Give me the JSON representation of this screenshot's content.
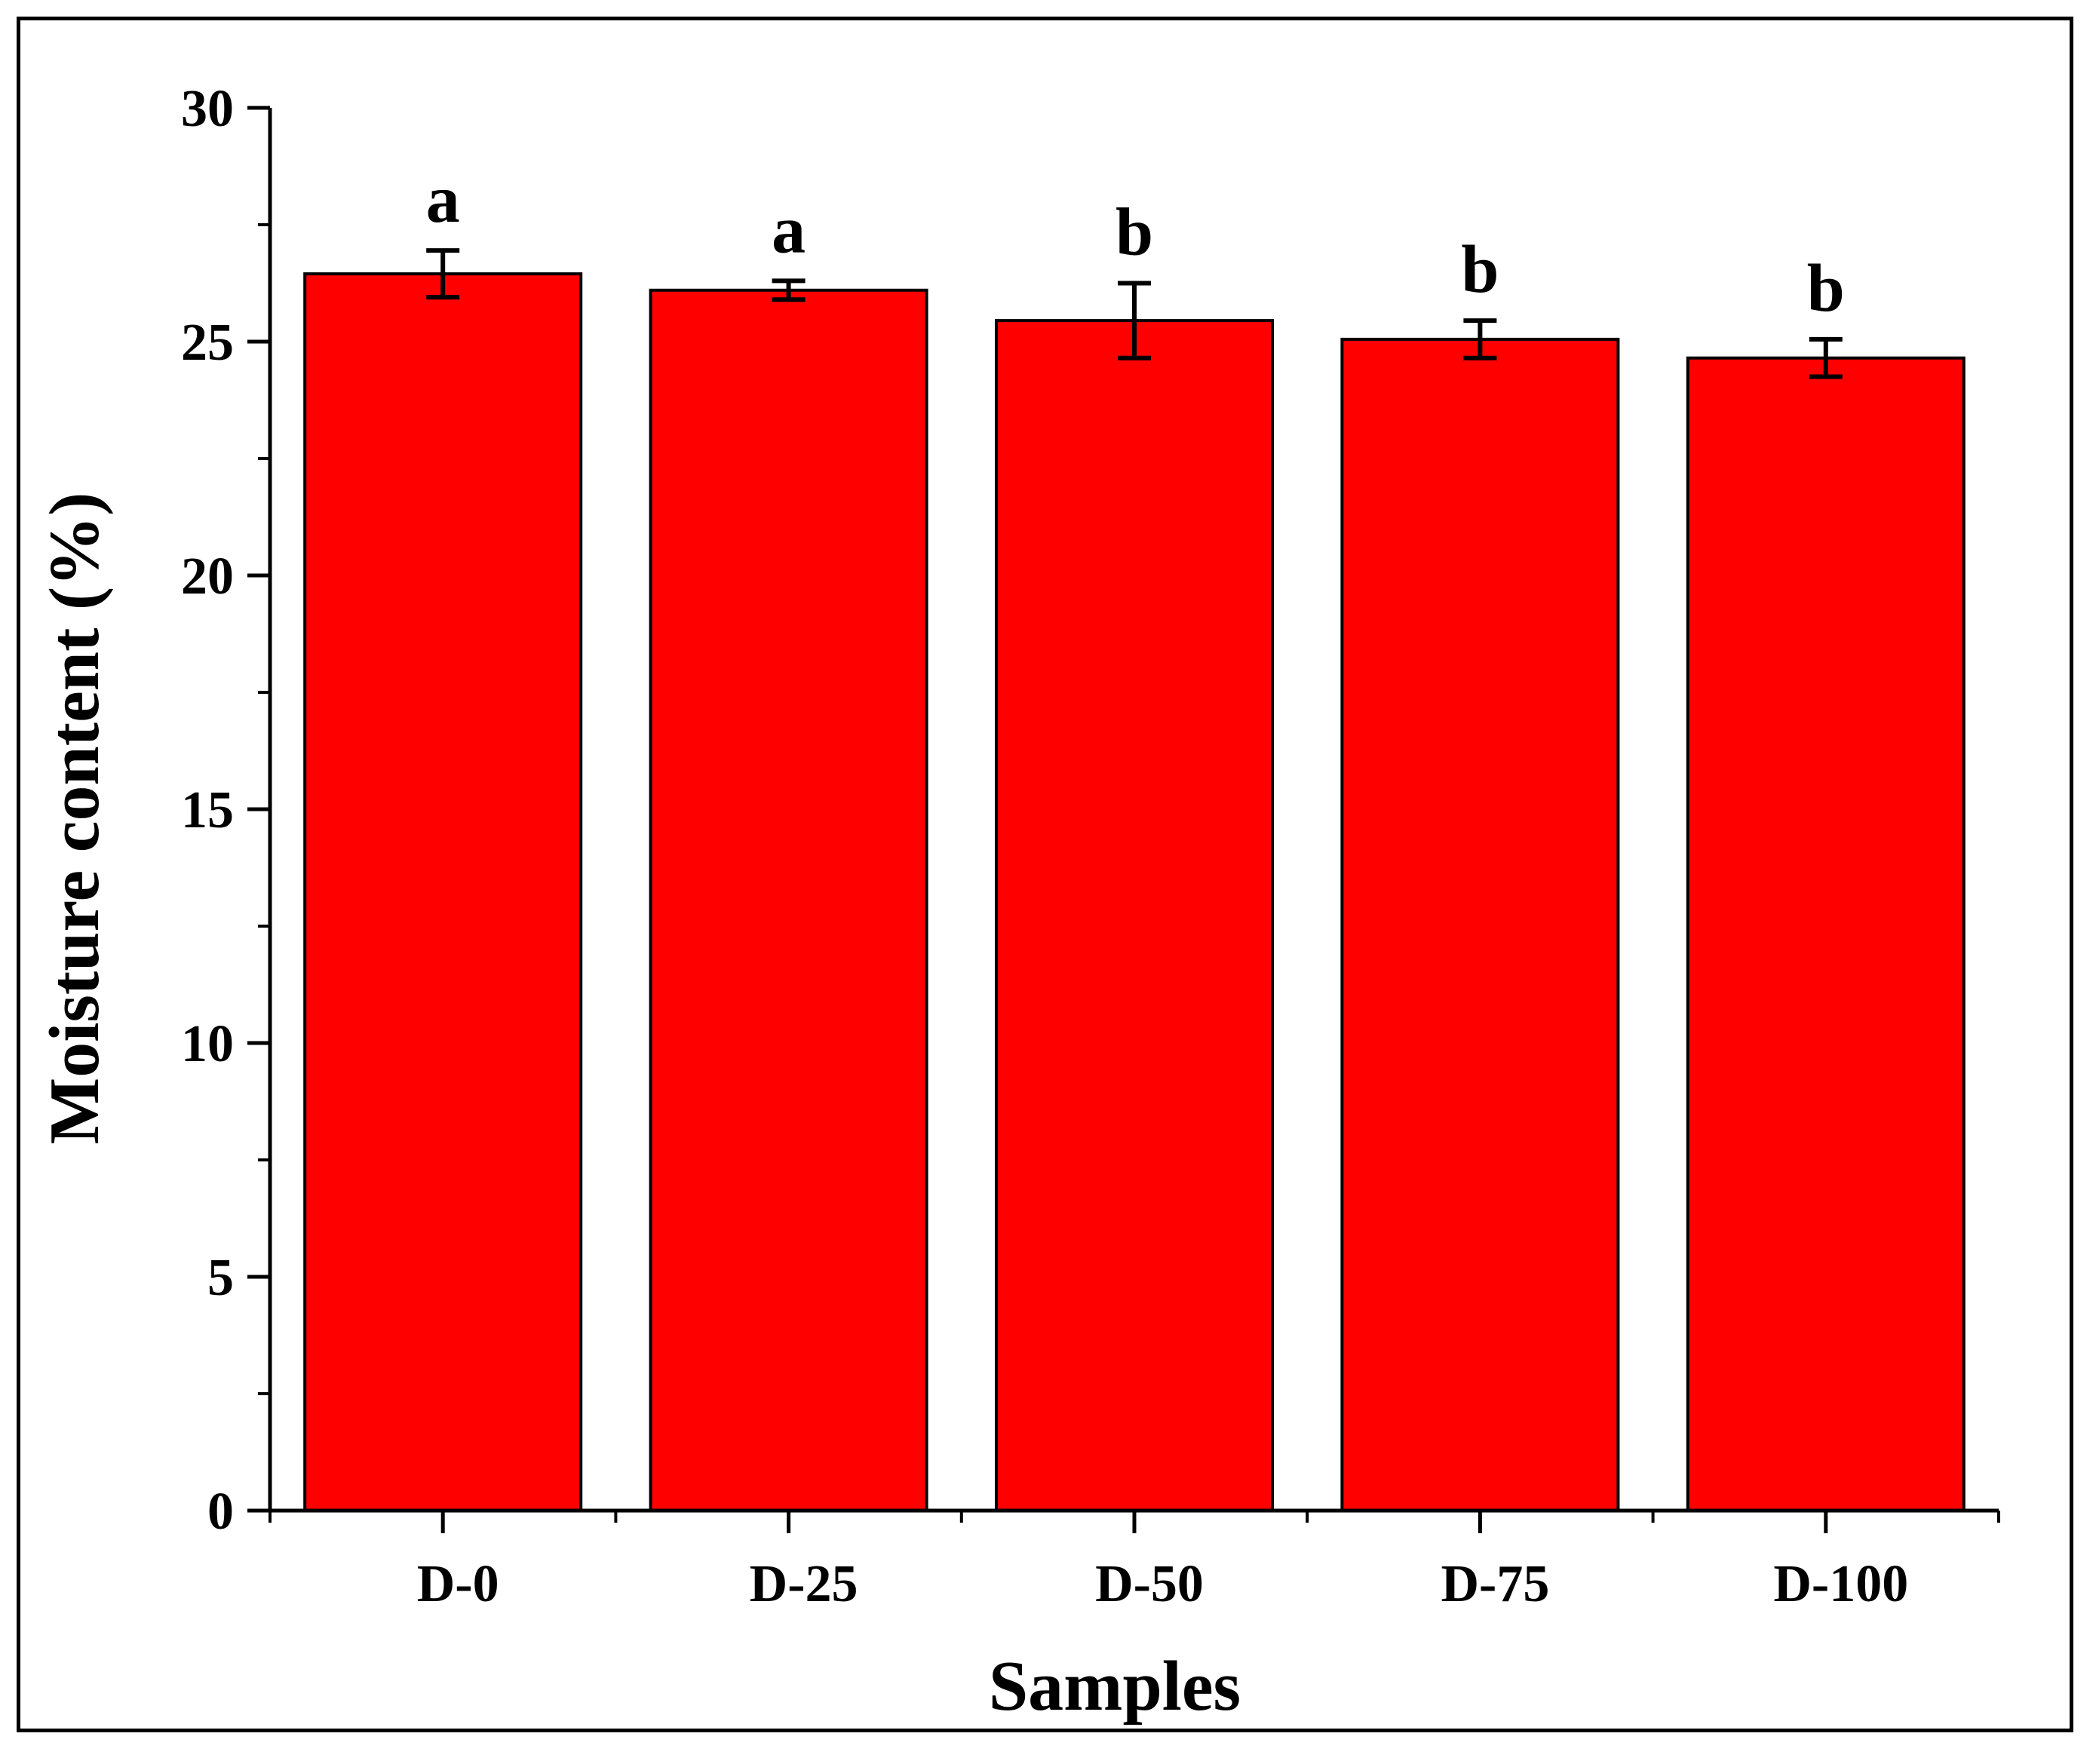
{
  "chart_data": {
    "type": "bar",
    "title": "",
    "xlabel": "Samples",
    "ylabel": "Moisture content (%)",
    "categories": [
      "D-0",
      "D-25",
      "D-50",
      "D-75",
      "D-100"
    ],
    "values": [
      26.45,
      26.1,
      25.45,
      25.05,
      24.65
    ],
    "errors": [
      0.5,
      0.2,
      0.8,
      0.4,
      0.4
    ],
    "significance": [
      "a",
      "a",
      "b",
      "b",
      "b"
    ],
    "ylim": [
      0,
      30
    ],
    "yticks": [
      0,
      5,
      10,
      15,
      20,
      25,
      30
    ],
    "grid": false,
    "bar_color": "#ff0000",
    "edge_color": "#000000"
  }
}
